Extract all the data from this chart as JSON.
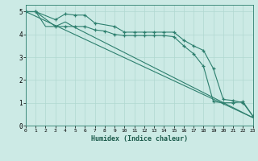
{
  "xlabel": "Humidex (Indice chaleur)",
  "background_color": "#cceae5",
  "grid_color": "#b0d8d0",
  "line_color": "#2d7f6e",
  "xlim": [
    0,
    23
  ],
  "ylim": [
    0,
    5.3
  ],
  "xtick_labels": [
    "0",
    "1",
    "2",
    "3",
    "4",
    "5",
    "6",
    "7",
    "8",
    "9",
    "10",
    "11",
    "12",
    "13",
    "14",
    "15",
    "16",
    "17",
    "18",
    "19",
    "20",
    "21",
    "22",
    "23"
  ],
  "ytick_labels": [
    "0",
    "1",
    "2",
    "3",
    "4",
    "5"
  ],
  "line1_x": [
    0,
    1,
    3,
    4,
    5,
    6,
    7,
    9,
    10,
    11,
    12,
    13,
    14,
    15,
    16,
    17,
    18,
    19,
    20,
    21,
    22,
    23
  ],
  "line1_y": [
    5.0,
    5.0,
    4.65,
    4.9,
    4.85,
    4.85,
    4.5,
    4.35,
    4.1,
    4.1,
    4.1,
    4.1,
    4.1,
    4.1,
    3.75,
    3.5,
    3.3,
    2.5,
    1.15,
    1.1,
    1.0,
    0.42
  ],
  "line2_x": [
    0,
    1,
    3,
    4,
    5,
    6,
    7,
    8,
    9,
    10,
    11,
    12,
    13,
    14,
    15,
    16,
    17,
    18,
    19,
    20,
    21,
    22,
    23
  ],
  "line2_y": [
    5.0,
    5.0,
    4.35,
    4.35,
    4.35,
    4.35,
    4.2,
    4.15,
    4.0,
    3.95,
    3.95,
    3.95,
    3.95,
    3.95,
    3.9,
    3.5,
    3.15,
    2.6,
    1.05,
    1.0,
    1.0,
    1.05,
    0.42
  ],
  "line3_x": [
    0,
    23
  ],
  "line3_y": [
    5.0,
    0.35
  ],
  "line4_x": [
    0,
    1,
    2,
    3,
    4,
    5,
    23
  ],
  "line4_y": [
    5.0,
    5.0,
    4.35,
    4.35,
    4.55,
    4.3,
    0.35
  ]
}
